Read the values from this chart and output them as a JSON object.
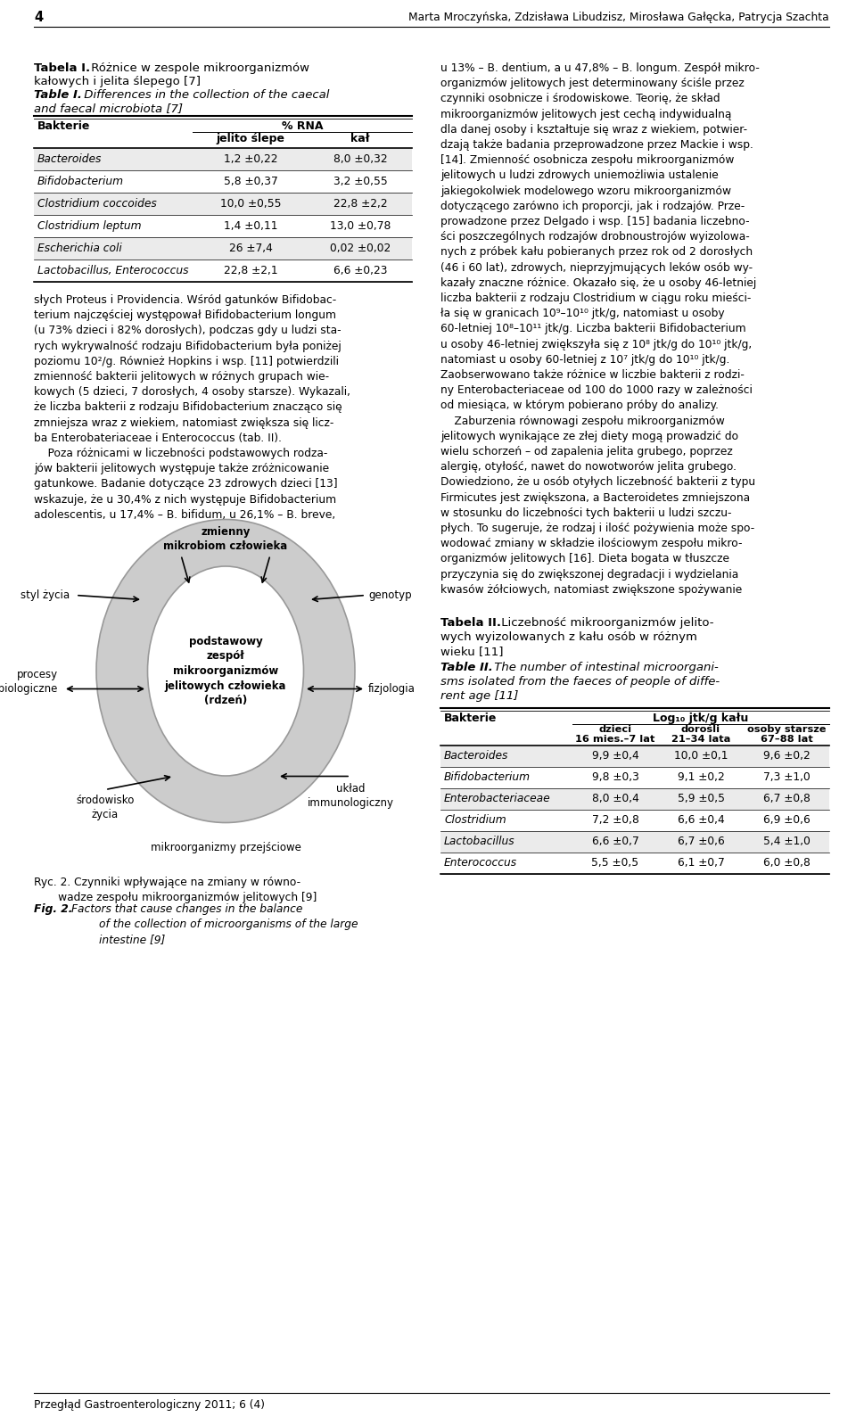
{
  "page_number": "4",
  "header_authors": "Marta Mroczyńska, Zdzisława Libudzisz, Mirosława Gałęcka, Patrycja Szachta",
  "bg_color": "#ffffff",
  "table1_rows": [
    [
      "Bacteroides",
      "1,2 ±0,22",
      "8,0 ±0,32"
    ],
    [
      "Bifidobacterium",
      "5,8 ±0,37",
      "3,2 ±0,55"
    ],
    [
      "Clostridium coccoides",
      "10,0 ±0,55",
      "22,8 ±2,2"
    ],
    [
      "Clostridium leptum",
      "1,4 ±0,11",
      "13,0 ±0,78"
    ],
    [
      "Escherichia coli",
      "26 ±7,4",
      "0,02 ±0,02"
    ],
    [
      "Lactobacillus, Enterococcus",
      "22,8 ±2,1",
      "6,6 ±0,23"
    ]
  ],
  "table2_rows": [
    [
      "Bacteroides",
      "9,9 ±0,4",
      "10,0 ±0,1",
      "9,6 ±0,2"
    ],
    [
      "Bifidobacterium",
      "9,8 ±0,3",
      "9,1 ±0,2",
      "7,3 ±1,0"
    ],
    [
      "Enterobacteriaceae",
      "8,0 ±0,4",
      "5,9 ±0,5",
      "6,7 ±0,8"
    ],
    [
      "Clostridium",
      "7,2 ±0,8",
      "6,6 ±0,4",
      "6,9 ±0,6"
    ],
    [
      "Lactobacillus",
      "6,6 ±0,7",
      "6,7 ±0,6",
      "5,4 ±1,0"
    ],
    [
      "Enterococcus",
      "5,5 ±0,5",
      "6,1 ±0,7",
      "6,0 ±0,8"
    ]
  ],
  "footer": "Przegłąd Gastroenterologiczny 2011; 6 (4)",
  "gray_row": "#ebebeb",
  "line_color": "#555555",
  "table_line_color": "#000000"
}
